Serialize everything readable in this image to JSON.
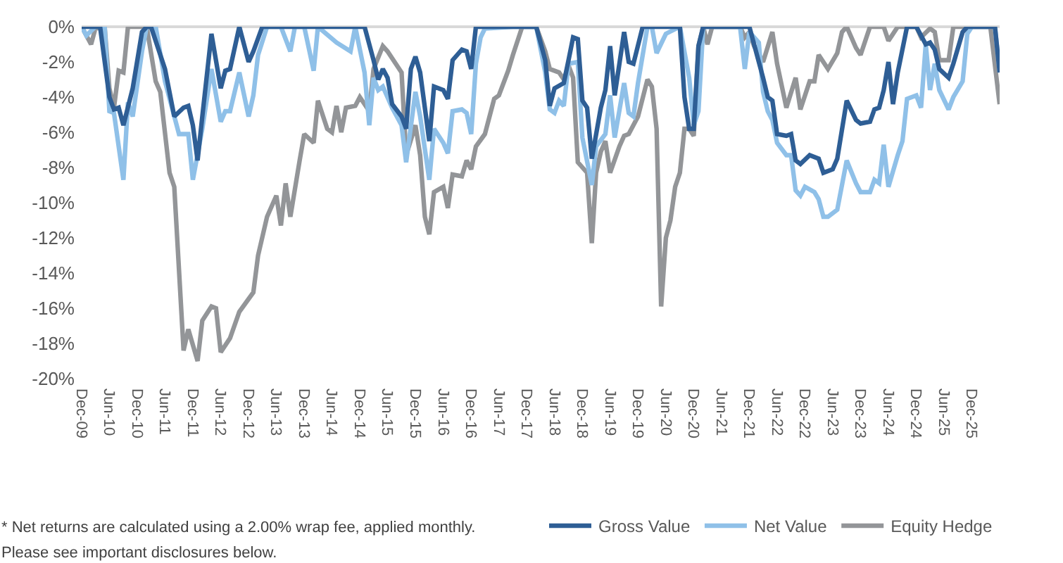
{
  "chart_data": {
    "type": "line",
    "xlim": [
      "2009-12",
      "2026-06"
    ],
    "xticks": [
      {
        "value": "2009-12",
        "label": "Dec-09"
      },
      {
        "value": "2010-06",
        "label": "Jun-10"
      },
      {
        "value": "2010-12",
        "label": "Dec-10"
      },
      {
        "value": "2011-06",
        "label": "Jun-11"
      },
      {
        "value": "2011-12",
        "label": "Dec-11"
      },
      {
        "value": "2012-06",
        "label": "Jun-12"
      },
      {
        "value": "2012-12",
        "label": "Dec-12"
      },
      {
        "value": "2013-06",
        "label": "Jun-13"
      },
      {
        "value": "2013-12",
        "label": "Dec-13"
      },
      {
        "value": "2014-06",
        "label": "Jun-14"
      },
      {
        "value": "2014-12",
        "label": "Dec-14"
      },
      {
        "value": "2015-06",
        "label": "Jun-15"
      },
      {
        "value": "2015-12",
        "label": "Dec-15"
      },
      {
        "value": "2016-06",
        "label": "Jun-16"
      },
      {
        "value": "2016-12",
        "label": "Dec-16"
      },
      {
        "value": "2017-06",
        "label": "Jun-17"
      },
      {
        "value": "2017-12",
        "label": "Dec-17"
      },
      {
        "value": "2018-06",
        "label": "Jun-18"
      },
      {
        "value": "2018-12",
        "label": "Dec-18"
      },
      {
        "value": "2019-06",
        "label": "Jun-19"
      },
      {
        "value": "2019-12",
        "label": "Dec-19"
      },
      {
        "value": "2020-06",
        "label": "Jun-20"
      },
      {
        "value": "2020-12",
        "label": "Dec-20"
      },
      {
        "value": "2021-06",
        "label": "Jun-21"
      },
      {
        "value": "2021-12",
        "label": "Dec-21"
      },
      {
        "value": "2022-06",
        "label": "Jun-22"
      },
      {
        "value": "2022-12",
        "label": "Dec-22"
      },
      {
        "value": "2023-06",
        "label": "Jun-23"
      },
      {
        "value": "2023-12",
        "label": "Dec-23"
      },
      {
        "value": "2024-06",
        "label": "Jun-24"
      },
      {
        "value": "2024-12",
        "label": "Dec-24"
      },
      {
        "value": "2025-06",
        "label": "Jun-25"
      },
      {
        "value": "2025-12",
        "label": "Dec-25"
      }
    ],
    "ylim": [
      -20,
      0
    ],
    "yticks": [
      {
        "value": 0,
        "label": "0%"
      },
      {
        "value": -2,
        "label": "-2%"
      },
      {
        "value": -4,
        "label": "-4%"
      },
      {
        "value": -6,
        "label": "-6%"
      },
      {
        "value": -8,
        "label": "-8%"
      },
      {
        "value": -10,
        "label": "-10%"
      },
      {
        "value": -12,
        "label": "-12%"
      },
      {
        "value": -14,
        "label": "-14%"
      },
      {
        "value": -16,
        "label": "-16%"
      },
      {
        "value": -18,
        "label": "-18%"
      },
      {
        "value": -20,
        "label": "-20%"
      }
    ],
    "legend": "bottom right",
    "marker": "none",
    "line_style": "solid",
    "annotations": [
      "* Net returns are calculated using a 2.00% wrap fee, applied monthly.",
      "Please see important disclosures below."
    ],
    "series": [
      {
        "name": "Equity Hedge",
        "color": "#939598",
        "x": [
          "2009-12",
          "2010-02",
          "2010-03",
          "2010-05",
          "2010-06",
          "2010-07",
          "2010-08",
          "2010-09",
          "2010-10",
          "2010-11",
          "2011-02",
          "2011-04",
          "2011-05",
          "2011-07",
          "2011-08",
          "2011-10",
          "2011-11",
          "2012-01",
          "2012-02",
          "2012-04",
          "2012-05",
          "2012-06",
          "2012-08",
          "2012-10",
          "2013-01",
          "2013-02",
          "2013-04",
          "2013-06",
          "2013-07",
          "2013-08",
          "2013-09",
          "2013-11",
          "2013-12",
          "2014-02",
          "2014-03",
          "2014-05",
          "2014-06",
          "2014-07",
          "2014-08",
          "2014-09",
          "2014-11",
          "2014-12",
          "2015-02",
          "2015-03",
          "2015-05",
          "2015-06",
          "2015-09",
          "2015-10",
          "2015-12",
          "2016-01",
          "2016-02",
          "2016-03",
          "2016-04",
          "2016-06",
          "2016-07",
          "2016-08",
          "2016-10",
          "2016-11",
          "2016-12",
          "2017-01",
          "2017-03",
          "2017-05",
          "2017-06",
          "2017-08",
          "2017-09",
          "2017-11",
          "2018-02",
          "2018-04",
          "2018-05",
          "2018-07",
          "2018-08",
          "2018-09",
          "2018-10",
          "2018-11",
          "2019-01",
          "2019-02",
          "2019-03",
          "2019-04",
          "2019-05",
          "2019-06",
          "2019-08",
          "2019-09",
          "2019-10",
          "2019-12",
          "2020-02",
          "2020-03",
          "2020-04",
          "2020-05",
          "2020-06",
          "2020-07",
          "2020-08",
          "2020-09",
          "2020-10",
          "2020-11",
          "2020-12",
          "2021-01",
          "2021-02",
          "2021-03",
          "2021-04",
          "2021-10",
          "2021-11",
          "2021-12",
          "2022-01",
          "2022-03",
          "2022-05",
          "2022-06",
          "2022-08",
          "2022-10",
          "2022-11",
          "2023-01",
          "2023-02",
          "2023-03",
          "2023-05",
          "2023-07",
          "2023-08",
          "2023-09",
          "2023-11",
          "2023-12",
          "2024-02",
          "2024-05",
          "2024-06",
          "2024-08",
          "2024-12",
          "2025-01",
          "2025-03",
          "2025-04",
          "2025-05",
          "2025-07",
          "2025-08",
          "2026-04",
          "2026-06"
        ],
        "values": [
          0,
          -1.0,
          -0.1,
          0,
          -3.5,
          -4.6,
          -2.5,
          -2.6,
          0,
          0,
          0,
          -3.1,
          -3.7,
          -8.3,
          -9.1,
          -18.4,
          -17.2,
          -19.0,
          -16.7,
          -15.9,
          -16.0,
          -18.5,
          -17.7,
          -16.2,
          -15.1,
          -13.0,
          -10.8,
          -9.6,
          -11.3,
          -8.9,
          -10.8,
          -7.6,
          -6.1,
          -6.6,
          -4.2,
          -5.8,
          -6.0,
          -4.5,
          -6.0,
          -4.6,
          -4.5,
          -4.0,
          -4.8,
          -2.4,
          -1.1,
          -1.4,
          -2.6,
          -7.3,
          -5.6,
          -7.3,
          -10.8,
          -11.8,
          -9.4,
          -9.1,
          -10.3,
          -8.4,
          -8.5,
          -7.6,
          -8.1,
          -6.8,
          -6.1,
          -4.1,
          -3.9,
          -2.5,
          -1.6,
          0,
          0,
          -1.4,
          -2.4,
          -2.6,
          -3.0,
          -2.2,
          -2.9,
          -7.7,
          -8.3,
          -12.3,
          -8.3,
          -7.1,
          -6.5,
          -8.3,
          -6.8,
          -6.2,
          -6.1,
          -5.1,
          -3.0,
          -3.4,
          -5.8,
          -15.9,
          -12.0,
          -11.0,
          -9.1,
          -8.3,
          -5.8,
          -5.8,
          -6.2,
          -1.1,
          0,
          -1.0,
          0,
          0,
          -0.6,
          -0.3,
          -1.1,
          -2.0,
          -0.3,
          -2.1,
          -4.6,
          -2.9,
          -4.7,
          -3.1,
          -3.1,
          -1.6,
          -2.4,
          -1.5,
          -0.3,
          0,
          -1.2,
          -1.6,
          0,
          0,
          -0.8,
          0,
          0,
          -0.6,
          -0.1,
          -0.3,
          -1.9,
          -1.9,
          0,
          0,
          -4.4
        ]
      },
      {
        "name": "Net Value",
        "color": "#8fc0e8",
        "x": [
          "2009-12",
          "2010-01",
          "2010-03",
          "2010-05",
          "2010-06",
          "2010-07",
          "2010-09",
          "2010-10",
          "2010-11",
          "2011-01",
          "2011-02",
          "2011-04",
          "2011-06",
          "2011-09",
          "2011-11",
          "2011-12",
          "2012-02",
          "2012-04",
          "2012-06",
          "2012-07",
          "2012-08",
          "2012-10",
          "2012-12",
          "2013-01",
          "2013-02",
          "2013-04",
          "2013-07",
          "2013-09",
          "2013-10",
          "2013-12",
          "2014-02",
          "2014-03",
          "2014-07",
          "2014-10",
          "2014-11",
          "2015-01",
          "2015-02",
          "2015-03",
          "2015-04",
          "2015-05",
          "2015-07",
          "2015-09",
          "2015-10",
          "2015-12",
          "2016-01",
          "2016-03",
          "2016-04",
          "2016-06",
          "2016-07",
          "2016-08",
          "2016-10",
          "2016-11",
          "2016-12",
          "2017-01",
          "2017-02",
          "2017-03",
          "2017-09",
          "2018-02",
          "2018-04",
          "2018-05",
          "2018-06",
          "2018-07",
          "2018-08",
          "2018-09",
          "2018-11",
          "2018-12",
          "2019-02",
          "2019-03",
          "2019-05",
          "2019-06",
          "2019-07",
          "2019-09",
          "2019-10",
          "2019-11",
          "2019-12",
          "2020-02",
          "2020-03",
          "2020-04",
          "2020-06",
          "2020-09",
          "2020-11",
          "2020-12",
          "2021-01",
          "2021-02",
          "2021-10",
          "2021-11",
          "2021-12",
          "2022-02",
          "2022-03",
          "2022-04",
          "2022-05",
          "2022-06",
          "2022-08",
          "2022-09",
          "2022-10",
          "2022-11",
          "2022-12",
          "2023-02",
          "2023-03",
          "2023-04",
          "2023-05",
          "2023-07",
          "2023-09",
          "2023-11",
          "2023-12",
          "2024-02",
          "2024-03",
          "2024-04",
          "2024-05",
          "2024-06",
          "2024-08",
          "2024-09",
          "2024-10",
          "2024-12",
          "2025-01",
          "2025-02",
          "2025-03",
          "2025-04",
          "2025-05",
          "2025-07",
          "2025-08",
          "2025-10",
          "2025-11",
          "2025-12",
          "2026-05",
          "2026-06"
        ],
        "values": [
          0,
          -0.5,
          0,
          0,
          -4.8,
          -4.9,
          -8.7,
          -4.3,
          -5.1,
          -1.4,
          0,
          0,
          -3.1,
          -6.1,
          -6.1,
          -8.7,
          -5.8,
          -2.4,
          -5.4,
          -4.8,
          -4.8,
          -2.6,
          -5.1,
          -3.9,
          -1.6,
          0,
          0,
          -1.4,
          0,
          0,
          -2.5,
          0,
          -0.9,
          -1.4,
          0,
          -2.6,
          -5.6,
          -2.9,
          -3.6,
          -3.4,
          -4.6,
          -5.6,
          -7.7,
          -3.7,
          -5.1,
          -8.7,
          -5.8,
          -6.6,
          -7.2,
          -4.8,
          -4.7,
          -4.9,
          -6.1,
          -2.1,
          -0.6,
          -0.1,
          0,
          0,
          -2.6,
          -4.7,
          -4.9,
          -4.2,
          -4.5,
          -2.1,
          -2.0,
          -6.3,
          -9.0,
          -6.8,
          -6.1,
          -3.9,
          -6.3,
          -3.2,
          -4.9,
          -5.1,
          -3.2,
          0,
          0,
          -1.5,
          -0.4,
          0,
          -2.9,
          -5.6,
          -4.8,
          0,
          0,
          -2.4,
          -0.3,
          -0.9,
          -3.7,
          -4.8,
          -5.3,
          -6.6,
          -7.3,
          -7.3,
          -9.3,
          -9.6,
          -9.1,
          -9.4,
          -9.8,
          -10.8,
          -10.8,
          -10.4,
          -7.6,
          -8.9,
          -9.4,
          -9.4,
          -8.7,
          -8.9,
          -6.7,
          -9.1,
          -7.3,
          -6.5,
          -4.1,
          -3.9,
          -4.6,
          -1.0,
          -3.6,
          -2.1,
          -3.6,
          -4.7,
          -4.0,
          -3.1,
          -0.4,
          0,
          0,
          -2.6
        ]
      },
      {
        "name": "Gross Value",
        "color": "#2e5e95",
        "x": [
          "2009-12",
          "2010-02",
          "2010-04",
          "2010-06",
          "2010-07",
          "2010-08",
          "2010-09",
          "2010-11",
          "2011-01",
          "2011-02",
          "2011-03",
          "2011-06",
          "2011-08",
          "2011-10",
          "2011-11",
          "2011-12",
          "2012-01",
          "2012-02",
          "2012-04",
          "2012-06",
          "2012-07",
          "2012-08",
          "2012-10",
          "2012-12",
          "2013-01",
          "2013-03",
          "2015-01",
          "2015-03",
          "2015-04",
          "2015-05",
          "2015-06",
          "2015-07",
          "2015-09",
          "2015-10",
          "2015-11",
          "2015-12",
          "2016-01",
          "2016-03",
          "2016-04",
          "2016-06",
          "2016-07",
          "2016-08",
          "2016-10",
          "2016-11",
          "2016-12",
          "2017-01",
          "2018-02",
          "2018-04",
          "2018-05",
          "2018-06",
          "2018-08",
          "2018-09",
          "2018-10",
          "2018-11",
          "2018-12",
          "2019-01",
          "2019-02",
          "2019-04",
          "2019-05",
          "2019-06",
          "2019-07",
          "2019-09",
          "2019-10",
          "2019-11",
          "2020-01",
          "2020-09",
          "2020-10",
          "2020-11",
          "2020-12",
          "2021-01",
          "2021-02",
          "2021-12",
          "2022-03",
          "2022-04",
          "2022-05",
          "2022-06",
          "2022-08",
          "2022-09",
          "2022-10",
          "2022-11",
          "2023-01",
          "2023-03",
          "2023-04",
          "2023-06",
          "2023-07",
          "2023-09",
          "2023-11",
          "2023-12",
          "2024-02",
          "2024-03",
          "2024-04",
          "2024-05",
          "2024-06",
          "2024-07",
          "2024-08",
          "2024-10",
          "2024-12",
          "2025-02",
          "2025-03",
          "2025-04",
          "2025-05",
          "2025-07",
          "2025-08",
          "2025-10",
          "2025-11",
          "2026-05",
          "2026-06"
        ],
        "values": [
          0,
          0,
          0,
          -4.0,
          -4.7,
          -4.6,
          -5.6,
          -3.5,
          -0.3,
          0,
          0,
          -2.4,
          -5.1,
          -4.6,
          -4.5,
          -5.6,
          -7.6,
          -5.1,
          -0.4,
          -3.5,
          -2.5,
          -2.4,
          0,
          -2.0,
          -1.4,
          0,
          0,
          -1.9,
          -3.0,
          -2.4,
          -2.9,
          -4.4,
          -5.1,
          -5.8,
          -2.4,
          -1.7,
          -2.6,
          -6.5,
          -3.4,
          -3.6,
          -4.1,
          -1.9,
          -1.3,
          -1.4,
          -2.4,
          0,
          0,
          -1.9,
          -4.5,
          -3.5,
          -3.2,
          -1.9,
          -0.6,
          -0.7,
          -4.2,
          -4.6,
          -7.5,
          -4.6,
          -3.6,
          -1.1,
          -3.9,
          -0.3,
          -2.0,
          -2.1,
          0,
          0,
          -4.0,
          -5.8,
          -5.8,
          -1.1,
          0,
          0,
          -2.9,
          -4.0,
          -4.2,
          -6.1,
          -6.2,
          -6.1,
          -7.6,
          -7.8,
          -7.3,
          -7.5,
          -8.3,
          -8.1,
          -7.5,
          -4.2,
          -5.3,
          -5.5,
          -5.4,
          -4.7,
          -4.6,
          -3.6,
          -2.0,
          -4.4,
          -2.6,
          0,
          0,
          -1.0,
          -0.9,
          -1.3,
          -2.4,
          -2.9,
          -2.1,
          -0.3,
          0,
          0,
          -2.6
        ]
      }
    ]
  }
}
